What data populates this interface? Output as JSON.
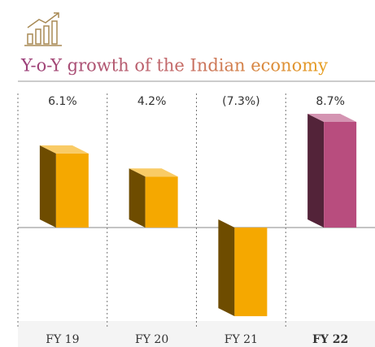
{
  "chart_data": {
    "type": "bar3d",
    "title": "Y-o-Y growth of the Indian economy",
    "categories": [
      "FY 19",
      "FY 20",
      "FY 21",
      "FY 22"
    ],
    "values": [
      6.1,
      4.2,
      -7.3,
      8.7
    ],
    "value_labels": [
      "6.1%",
      "4.2%",
      "(7.3%)",
      "8.7%"
    ],
    "colors": [
      "#f5a800",
      "#f5a800",
      "#f5a800",
      "#b84d7e"
    ]
  }
}
